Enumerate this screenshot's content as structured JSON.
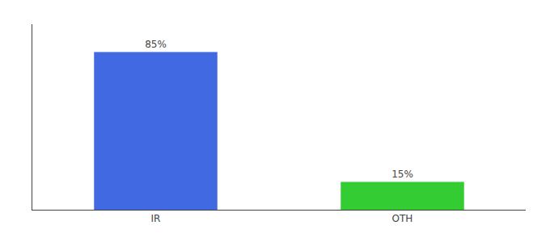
{
  "chart_data": {
    "type": "bar",
    "categories": [
      "IR",
      "OTH"
    ],
    "values": [
      85,
      15
    ],
    "value_labels": [
      "85%",
      "15%"
    ],
    "colors": [
      "#4169e1",
      "#33cc33"
    ],
    "ylim": [
      0,
      100
    ],
    "grid": false,
    "data_labels": true,
    "tick_labels": "x"
  }
}
